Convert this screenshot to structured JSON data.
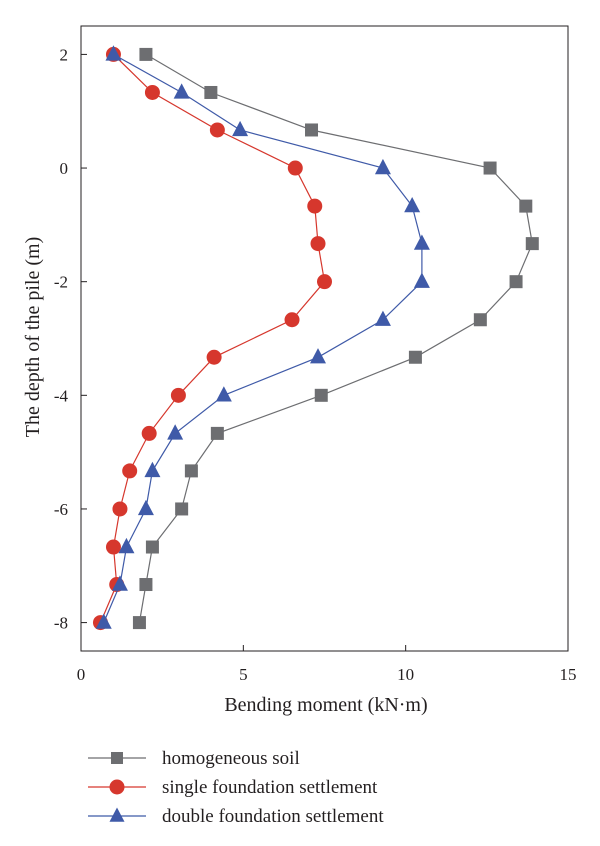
{
  "chart_data": {
    "type": "line",
    "xlabel": "Bending moment (kN·m)",
    "ylabel": "The depth of the pile (m)",
    "xlim": [
      0,
      15
    ],
    "ylim": [
      -8.5,
      2.5
    ],
    "xticks": [
      0,
      5,
      10,
      15
    ],
    "yticks": [
      2,
      0,
      -2,
      -4,
      -6,
      -8
    ],
    "grid": false,
    "legend_position": "bottom",
    "series": [
      {
        "name": "homogeneous soil",
        "color": "#6d6e71",
        "marker": "square",
        "points": [
          {
            "x": 2.0,
            "y": 2.0
          },
          {
            "x": 4.0,
            "y": 1.33
          },
          {
            "x": 7.1,
            "y": 0.67
          },
          {
            "x": 12.6,
            "y": 0.0
          },
          {
            "x": 13.7,
            "y": -0.67
          },
          {
            "x": 13.9,
            "y": -1.33
          },
          {
            "x": 13.4,
            "y": -2.0
          },
          {
            "x": 12.3,
            "y": -2.67
          },
          {
            "x": 10.3,
            "y": -3.33
          },
          {
            "x": 7.4,
            "y": -4.0
          },
          {
            "x": 4.2,
            "y": -4.67
          },
          {
            "x": 3.4,
            "y": -5.33
          },
          {
            "x": 3.1,
            "y": -6.0
          },
          {
            "x": 2.2,
            "y": -6.67
          },
          {
            "x": 2.0,
            "y": -7.33
          },
          {
            "x": 1.8,
            "y": -8.0
          }
        ]
      },
      {
        "name": "single foundation settlement",
        "color": "#d6372d",
        "marker": "circle",
        "points": [
          {
            "x": 1.0,
            "y": 2.0
          },
          {
            "x": 2.2,
            "y": 1.33
          },
          {
            "x": 4.2,
            "y": 0.67
          },
          {
            "x": 6.6,
            "y": 0.0
          },
          {
            "x": 7.2,
            "y": -0.67
          },
          {
            "x": 7.3,
            "y": -1.33
          },
          {
            "x": 7.5,
            "y": -2.0
          },
          {
            "x": 6.5,
            "y": -2.67
          },
          {
            "x": 4.1,
            "y": -3.33
          },
          {
            "x": 3.0,
            "y": -4.0
          },
          {
            "x": 2.1,
            "y": -4.67
          },
          {
            "x": 1.5,
            "y": -5.33
          },
          {
            "x": 1.2,
            "y": -6.0
          },
          {
            "x": 1.0,
            "y": -6.67
          },
          {
            "x": 1.1,
            "y": -7.33
          },
          {
            "x": 0.6,
            "y": -8.0
          }
        ]
      },
      {
        "name": "double foundation settlement",
        "color": "#3f5aa8",
        "marker": "triangle",
        "points": [
          {
            "x": 1.0,
            "y": 2.0
          },
          {
            "x": 3.1,
            "y": 1.33
          },
          {
            "x": 4.9,
            "y": 0.67
          },
          {
            "x": 9.3,
            "y": 0.0
          },
          {
            "x": 10.2,
            "y": -0.67
          },
          {
            "x": 10.5,
            "y": -1.33
          },
          {
            "x": 10.5,
            "y": -2.0
          },
          {
            "x": 9.3,
            "y": -2.67
          },
          {
            "x": 7.3,
            "y": -3.33
          },
          {
            "x": 4.4,
            "y": -4.0
          },
          {
            "x": 2.9,
            "y": -4.67
          },
          {
            "x": 2.2,
            "y": -5.33
          },
          {
            "x": 2.0,
            "y": -6.0
          },
          {
            "x": 1.4,
            "y": -6.67
          },
          {
            "x": 1.2,
            "y": -7.33
          },
          {
            "x": 0.7,
            "y": -8.0
          }
        ]
      }
    ]
  }
}
